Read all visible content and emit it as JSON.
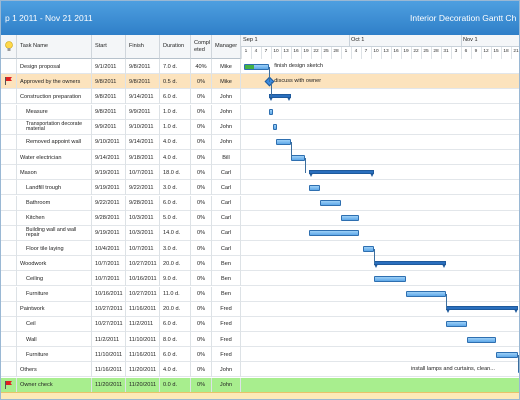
{
  "title_bar": {
    "date_range": "p 1 2011 - Nov 21 2011",
    "app_title": "Interior Decoration Gantt Ch"
  },
  "columns": {
    "task_name": "Task Name",
    "start": "Start",
    "finish": "Finish",
    "duration": "Duration",
    "completed": "Compl eted",
    "manager": "Manager"
  },
  "timeline": {
    "months": [
      "Sep 1",
      "Oct 1",
      "Nov 1"
    ],
    "days": [
      "1",
      "4",
      "7",
      "10",
      "13",
      "16",
      "19",
      "22",
      "25",
      "28",
      "1",
      "4",
      "7",
      "10",
      "13",
      "16",
      "19",
      "22",
      "25",
      "28",
      "31",
      "3",
      "6",
      "9",
      "12",
      "15",
      "18",
      "21"
    ]
  },
  "tasks": [
    {
      "name": "Design proposal",
      "start": "9/1/2011",
      "finish": "9/8/2011",
      "duration": "7.0 d.",
      "completed": "40%",
      "manager": "Mike",
      "indent": false,
      "highlight": "",
      "flag": false,
      "bar_label": "finish design sketch"
    },
    {
      "name": "Approved by the owners",
      "start": "9/8/2011",
      "finish": "9/8/2011",
      "duration": "0.5 d.",
      "completed": "0%",
      "manager": "Mike",
      "indent": false,
      "highlight": "orange",
      "flag": true,
      "bar_label": "discuss with owner"
    },
    {
      "name": "Construction preparation",
      "start": "9/8/2011",
      "finish": "9/14/2011",
      "duration": "6.0 d.",
      "completed": "0%",
      "manager": "John",
      "indent": false,
      "highlight": "",
      "flag": false,
      "bar_label": ""
    },
    {
      "name": "Measure",
      "start": "9/8/2011",
      "finish": "9/9/2011",
      "duration": "1.0 d.",
      "completed": "0%",
      "manager": "John",
      "indent": true,
      "highlight": "",
      "flag": false,
      "bar_label": ""
    },
    {
      "name": "Transportation decorate material",
      "start": "9/9/2011",
      "finish": "9/10/2011",
      "duration": "1.0 d.",
      "completed": "0%",
      "manager": "John",
      "indent": true,
      "highlight": "",
      "flag": false,
      "bar_label": ""
    },
    {
      "name": "Removed appoint wall",
      "start": "9/10/2011",
      "finish": "9/14/2011",
      "duration": "4.0 d.",
      "completed": "0%",
      "manager": "John",
      "indent": true,
      "highlight": "",
      "flag": false,
      "bar_label": ""
    },
    {
      "name": "Water electrician",
      "start": "9/14/2011",
      "finish": "9/18/2011",
      "duration": "4.0 d.",
      "completed": "0%",
      "manager": "Bill",
      "indent": false,
      "highlight": "",
      "flag": false,
      "bar_label": ""
    },
    {
      "name": "Mason",
      "start": "9/19/2011",
      "finish": "10/7/2011",
      "duration": "18.0 d.",
      "completed": "0%",
      "manager": "Carl",
      "indent": false,
      "highlight": "",
      "flag": false,
      "bar_label": ""
    },
    {
      "name": "Landfill trough",
      "start": "9/19/2011",
      "finish": "9/22/2011",
      "duration": "3.0 d.",
      "completed": "0%",
      "manager": "Carl",
      "indent": true,
      "highlight": "",
      "flag": false,
      "bar_label": ""
    },
    {
      "name": "Bathroom",
      "start": "9/22/2011",
      "finish": "9/28/2011",
      "duration": "6.0 d.",
      "completed": "0%",
      "manager": "Carl",
      "indent": true,
      "highlight": "",
      "flag": false,
      "bar_label": ""
    },
    {
      "name": "Kitchen",
      "start": "9/28/2011",
      "finish": "10/3/2011",
      "duration": "5.0 d.",
      "completed": "0%",
      "manager": "Carl",
      "indent": true,
      "highlight": "",
      "flag": false,
      "bar_label": ""
    },
    {
      "name": "Building wall and wall repair",
      "start": "9/19/2011",
      "finish": "10/3/2011",
      "duration": "14.0 d.",
      "completed": "0%",
      "manager": "Carl",
      "indent": true,
      "highlight": "",
      "flag": false,
      "bar_label": ""
    },
    {
      "name": "Floor tile laying",
      "start": "10/4/2011",
      "finish": "10/7/2011",
      "duration": "3.0 d.",
      "completed": "0%",
      "manager": "Carl",
      "indent": true,
      "highlight": "",
      "flag": false,
      "bar_label": ""
    },
    {
      "name": "Woodwork",
      "start": "10/7/2011",
      "finish": "10/27/2011",
      "duration": "20.0 d.",
      "completed": "0%",
      "manager": "Ben",
      "indent": false,
      "highlight": "",
      "flag": false,
      "bar_label": ""
    },
    {
      "name": "Ceiling",
      "start": "10/7/2011",
      "finish": "10/16/2011",
      "duration": "9.0 d.",
      "completed": "0%",
      "manager": "Ben",
      "indent": true,
      "highlight": "",
      "flag": false,
      "bar_label": ""
    },
    {
      "name": "Furniture",
      "start": "10/16/2011",
      "finish": "10/27/2011",
      "duration": "11.0 d.",
      "completed": "0%",
      "manager": "Ben",
      "indent": true,
      "highlight": "",
      "flag": false,
      "bar_label": ""
    },
    {
      "name": "Paintwork",
      "start": "10/27/2011",
      "finish": "11/16/2011",
      "duration": "20.0 d.",
      "completed": "0%",
      "manager": "Fred",
      "indent": false,
      "highlight": "",
      "flag": false,
      "bar_label": ""
    },
    {
      "name": "Ceil",
      "start": "10/27/2011",
      "finish": "11/2/2011",
      "duration": "6.0 d.",
      "completed": "0%",
      "manager": "Fred",
      "indent": true,
      "highlight": "",
      "flag": false,
      "bar_label": ""
    },
    {
      "name": "Wall",
      "start": "11/2/2011",
      "finish": "11/10/2011",
      "duration": "8.0 d.",
      "completed": "0%",
      "manager": "Fred",
      "indent": true,
      "highlight": "",
      "flag": false,
      "bar_label": ""
    },
    {
      "name": "Furniture",
      "start": "11/10/2011",
      "finish": "11/16/2011",
      "duration": "6.0 d.",
      "completed": "0%",
      "manager": "Fred",
      "indent": true,
      "highlight": "",
      "flag": false,
      "bar_label": ""
    },
    {
      "name": "Others",
      "start": "11/16/2011",
      "finish": "11/20/2011",
      "duration": "4.0 d.",
      "completed": "0%",
      "manager": "John",
      "indent": false,
      "highlight": "",
      "flag": false,
      "bar_label": "install lamps and curtains, clean..."
    },
    {
      "name": "Owner check",
      "start": "11/20/2011",
      "finish": "11/20/2011",
      "duration": "0.0 d.",
      "completed": "0%",
      "manager": "John",
      "indent": false,
      "highlight": "green",
      "flag": true,
      "bar_label": ""
    }
  ],
  "colors": {
    "title_bar": "#3a8fd6",
    "bar_fill": "#6aaeea",
    "progress": "#43b143",
    "highlight_orange": "#fce3bd",
    "highlight_green": "#a8ee8e",
    "flag": "#e02020"
  },
  "icons": {
    "info_column": "lightbulb-icon",
    "task_flag": "red-flag-icon"
  }
}
